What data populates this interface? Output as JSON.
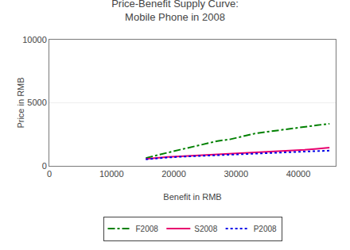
{
  "chart_data": {
    "type": "line",
    "title": "Price-Benefit Supply Curve:\nMobile Phone in 2008",
    "x_label": "Benefit in RMB",
    "y_label": "Price in RMB",
    "x": [
      15500,
      17000,
      19000,
      21000,
      23000,
      25000,
      27000,
      29000,
      31000,
      33000,
      35000,
      37000,
      39000,
      41000,
      43000,
      45000
    ],
    "series": [
      {
        "name": "F2008",
        "color": "#008000",
        "line_style": "dashdot",
        "values": [
          620,
          820,
          1050,
          1280,
          1510,
          1740,
          1970,
          2100,
          2330,
          2560,
          2700,
          2840,
          2980,
          3100,
          3220,
          3340
        ]
      },
      {
        "name": "S2008",
        "color": "#e8006e",
        "line_style": "solid",
        "values": [
          550,
          620,
          700,
          760,
          810,
          860,
          910,
          960,
          1010,
          1060,
          1110,
          1160,
          1210,
          1280,
          1360,
          1440
        ]
      },
      {
        "name": "P2008",
        "color": "#0000e8",
        "line_style": "dotted",
        "values": [
          520,
          590,
          660,
          720,
          770,
          810,
          850,
          890,
          930,
          970,
          1010,
          1050,
          1090,
          1130,
          1170,
          1210
        ]
      }
    ],
    "xlim": [
      0,
      46000
    ],
    "ylim": [
      0,
      10000
    ],
    "xticks": [
      0,
      10000,
      20000,
      30000,
      40000
    ],
    "yticks": [
      0,
      5000,
      10000
    ],
    "grid": true,
    "legend": "bottom"
  }
}
